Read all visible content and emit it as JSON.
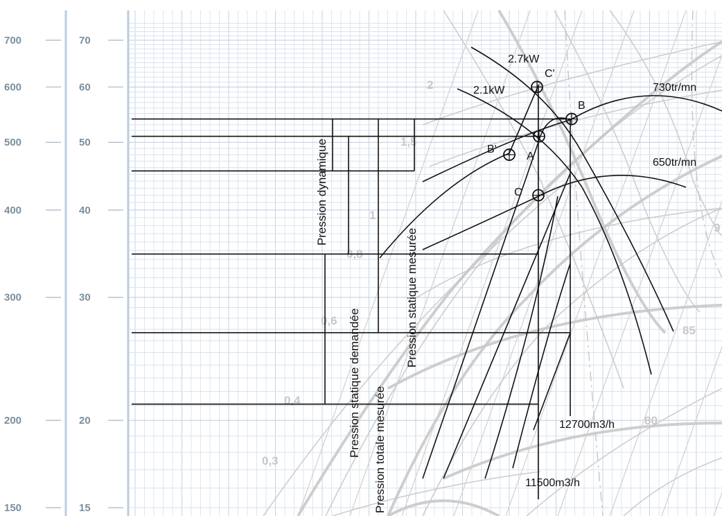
{
  "chart_data": {
    "type": "line",
    "title": "",
    "xlabel": "",
    "ylabel": "",
    "axes": {
      "pa_ticks": [
        "700",
        "600",
        "500",
        "400",
        "300",
        "200",
        "150"
      ],
      "mmce_ticks": [
        "70",
        "60",
        "50",
        "40",
        "30",
        "20",
        "15"
      ],
      "pa_values": [
        700,
        600,
        500,
        400,
        300,
        200,
        150
      ],
      "mmce_values": [
        70,
        60,
        50,
        40,
        30,
        20,
        15
      ],
      "scale": "log"
    },
    "curve_labels": {
      "power_27": "2.7kW",
      "power_21": "2.1kW",
      "speed_730": "730tr/mn",
      "speed_650": "650tr/mn",
      "flow_12700": "12700m3/h",
      "flow_11500": "11500m3/h"
    },
    "points": [
      {
        "name": "C'",
        "pressure": 60
      },
      {
        "name": "B",
        "pressure": 54
      },
      {
        "name": "A",
        "pressure": 51
      },
      {
        "name": "B'",
        "pressure": 48
      },
      {
        "name": "C",
        "pressure": 42
      }
    ],
    "point_labels": {
      "A": "A",
      "B": "B",
      "B_prime": "B'",
      "C": "C",
      "C_prime": "C'"
    },
    "annotations": {
      "pression_dynamique": "Pression dynamique",
      "pression_statique_mesuree": "Pression statique mesurée",
      "pression_statique_demandee": "Pression statique demandée",
      "pression_totale_mesuree": "Pression totale mesurée"
    },
    "background_labels": {
      "v2": "2",
      "v15": "1,5",
      "v1": "1",
      "v08": "0,8",
      "v06": "0,6",
      "v04": "0,4",
      "v03": "0,3",
      "e85": "85",
      "e80": "80",
      "e9": "9"
    },
    "grid": true
  }
}
